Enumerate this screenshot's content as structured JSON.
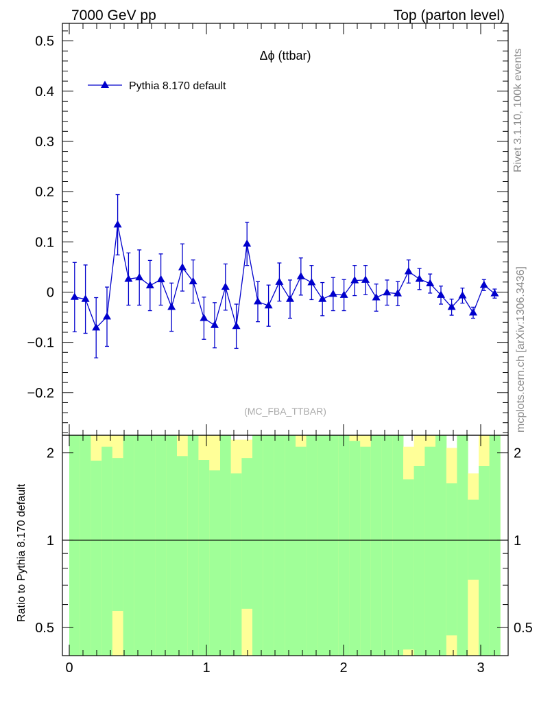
{
  "header": {
    "left": "7000 GeV pp",
    "right": "Top (parton level)"
  },
  "side_labels": {
    "rivet": "Rivet 3.1.10,  100k events",
    "mcplots": "mcplots.cern.ch [arXiv:1306.3436]"
  },
  "chart_data": {
    "type": "line",
    "title": "Δϕ (ttbar)",
    "watermark": "(MC_FBA_TTBAR)",
    "legend": {
      "position": "top-left"
    },
    "main_panel": {
      "ylim": [
        -0.285,
        0.535
      ],
      "yticks": [
        -0.2,
        -0.1,
        0,
        0.1,
        0.2,
        0.3,
        0.4,
        0.5
      ],
      "ytick_labels": [
        "−0.2",
        "−0.1",
        "0",
        "0.1",
        "0.2",
        "0.3",
        "0.4",
        "0.5"
      ],
      "series": [
        {
          "name": "Pythia 8.170 default",
          "color": "#0000cc",
          "marker": "triangle-up",
          "x": [
            0.039,
            0.118,
            0.196,
            0.275,
            0.353,
            0.432,
            0.511,
            0.589,
            0.668,
            0.746,
            0.825,
            0.903,
            0.982,
            1.06,
            1.139,
            1.218,
            1.296,
            1.375,
            1.453,
            1.532,
            1.61,
            1.689,
            1.767,
            1.846,
            1.924,
            2.003,
            2.081,
            2.16,
            2.238,
            2.317,
            2.395,
            2.474,
            2.553,
            2.631,
            2.71,
            2.788,
            2.867,
            2.945,
            3.024,
            3.102
          ],
          "y": [
            -0.01,
            -0.014,
            -0.071,
            -0.049,
            0.134,
            0.026,
            0.029,
            0.013,
            0.025,
            -0.03,
            0.049,
            0.021,
            -0.052,
            -0.066,
            0.01,
            -0.068,
            0.096,
            -0.019,
            -0.027,
            0.02,
            -0.014,
            0.031,
            0.019,
            -0.014,
            -0.004,
            -0.006,
            0.023,
            0.024,
            -0.011,
            -0.001,
            -0.003,
            0.041,
            0.026,
            0.017,
            -0.006,
            -0.03,
            -0.007,
            -0.041,
            0.014,
            -0.003
          ],
          "yerr": [
            0.069,
            0.068,
            0.06,
            0.059,
            0.06,
            0.052,
            0.055,
            0.05,
            0.051,
            0.048,
            0.047,
            0.043,
            0.042,
            0.045,
            0.046,
            0.044,
            0.043,
            0.04,
            0.041,
            0.038,
            0.038,
            0.037,
            0.034,
            0.033,
            0.033,
            0.031,
            0.03,
            0.029,
            0.027,
            0.025,
            0.024,
            0.023,
            0.021,
            0.019,
            0.018,
            0.016,
            0.015,
            0.011,
            0.011,
            0.009
          ]
        }
      ]
    },
    "ratio_panel": {
      "ylabel": "Ratio to Pythia 8.170 default",
      "scale": "log",
      "ylim": [
        0.4,
        2.3
      ],
      "yticks": [
        0.5,
        1,
        2
      ],
      "ytick_labels": [
        "0.5",
        "1",
        "2"
      ],
      "reference": 1,
      "band_colors": {
        "inner": "#a0ff98",
        "outer": "#ffff98"
      },
      "bins": [
        {
          "lo": 0.0,
          "hi": 0.0785,
          "g": [
            0.0,
            10
          ],
          "y": [
            0.0,
            10
          ]
        },
        {
          "lo": 0.0785,
          "hi": 0.157,
          "g": [
            0.0,
            10
          ],
          "y": [
            0.0,
            10
          ]
        },
        {
          "lo": 0.157,
          "hi": 0.236,
          "g": [
            0.0,
            1.88
          ],
          "y": [
            0.0,
            10
          ]
        },
        {
          "lo": 0.236,
          "hi": 0.314,
          "g": [
            0.0,
            2.1
          ],
          "y": [
            0.0,
            10
          ]
        },
        {
          "lo": 0.314,
          "hi": 0.393,
          "g": [
            0.57,
            1.92
          ],
          "y": [
            0.0,
            10
          ]
        },
        {
          "lo": 0.393,
          "hi": 0.471,
          "g": [
            0.0,
            10
          ],
          "y": [
            0.0,
            10
          ]
        },
        {
          "lo": 0.471,
          "hi": 0.55,
          "g": [
            0.0,
            10
          ],
          "y": [
            0.0,
            10
          ]
        },
        {
          "lo": 0.55,
          "hi": 0.628,
          "g": [
            0.0,
            10
          ],
          "y": [
            0.0,
            10
          ]
        },
        {
          "lo": 0.628,
          "hi": 0.707,
          "g": [
            0.0,
            10
          ],
          "y": [
            0.0,
            10
          ]
        },
        {
          "lo": 0.707,
          "hi": 0.785,
          "g": [
            0.0,
            10
          ],
          "y": [
            0.0,
            10
          ]
        },
        {
          "lo": 0.785,
          "hi": 0.864,
          "g": [
            0.0,
            1.95
          ],
          "y": [
            0.0,
            10
          ]
        },
        {
          "lo": 0.864,
          "hi": 0.942,
          "g": [
            0.0,
            10
          ],
          "y": [
            0.0,
            10
          ]
        },
        {
          "lo": 0.942,
          "hi": 1.021,
          "g": [
            0.0,
            1.89
          ],
          "y": [
            0.0,
            10
          ]
        },
        {
          "lo": 1.021,
          "hi": 1.1,
          "g": [
            0.0,
            1.74
          ],
          "y": [
            0.0,
            10
          ]
        },
        {
          "lo": 1.1,
          "hi": 1.178,
          "g": [
            0.0,
            10
          ],
          "y": [
            0.0,
            10
          ]
        },
        {
          "lo": 1.178,
          "hi": 1.257,
          "g": [
            0.0,
            1.7
          ],
          "y": [
            0.0,
            2.22
          ]
        },
        {
          "lo": 1.257,
          "hi": 1.335,
          "g": [
            0.58,
            1.92
          ],
          "y": [
            0.0,
            2.22
          ]
        },
        {
          "lo": 1.335,
          "hi": 1.414,
          "g": [
            0.0,
            10
          ],
          "y": [
            0.0,
            10
          ]
        },
        {
          "lo": 1.414,
          "hi": 1.492,
          "g": [
            0.0,
            10
          ],
          "y": [
            0.0,
            10
          ]
        },
        {
          "lo": 1.492,
          "hi": 1.571,
          "g": [
            0.0,
            10
          ],
          "y": [
            0.0,
            10
          ]
        },
        {
          "lo": 1.571,
          "hi": 1.65,
          "g": [
            0.0,
            10
          ],
          "y": [
            0.0,
            10
          ]
        },
        {
          "lo": 1.65,
          "hi": 1.728,
          "g": [
            0.0,
            2.1
          ],
          "y": [
            0.0,
            10
          ]
        },
        {
          "lo": 1.728,
          "hi": 1.807,
          "g": [
            0.0,
            10
          ],
          "y": [
            0.0,
            10
          ]
        },
        {
          "lo": 1.807,
          "hi": 1.885,
          "g": [
            0.0,
            10
          ],
          "y": [
            0.0,
            10
          ]
        },
        {
          "lo": 1.885,
          "hi": 1.964,
          "g": [
            0.0,
            10
          ],
          "y": [
            0.0,
            10
          ]
        },
        {
          "lo": 1.964,
          "hi": 2.042,
          "g": [
            0.0,
            10
          ],
          "y": [
            0.0,
            10
          ]
        },
        {
          "lo": 2.042,
          "hi": 2.121,
          "g": [
            0.0,
            2.2
          ],
          "y": [
            0.0,
            10
          ]
        },
        {
          "lo": 2.121,
          "hi": 2.199,
          "g": [
            0.0,
            2.1
          ],
          "y": [
            0.0,
            10
          ]
        },
        {
          "lo": 2.199,
          "hi": 2.278,
          "g": [
            0.0,
            10
          ],
          "y": [
            0.0,
            10
          ]
        },
        {
          "lo": 2.278,
          "hi": 2.356,
          "g": [
            0.0,
            10
          ],
          "y": [
            0.0,
            10
          ]
        },
        {
          "lo": 2.356,
          "hi": 2.435,
          "g": [
            0.0,
            10
          ],
          "y": [
            0.0,
            10
          ]
        },
        {
          "lo": 2.435,
          "hi": 2.513,
          "g": [
            0.42,
            1.62
          ],
          "y": [
            0.4,
            2.1
          ]
        },
        {
          "lo": 2.513,
          "hi": 2.592,
          "g": [
            0.0,
            1.8
          ],
          "y": [
            0.0,
            10
          ]
        },
        {
          "lo": 2.592,
          "hi": 2.67,
          "g": [
            0.0,
            2.1
          ],
          "y": [
            0.0,
            10
          ]
        },
        {
          "lo": 2.67,
          "hi": 2.749,
          "g": [
            0.0,
            10
          ],
          "y": [
            0.0,
            10
          ]
        },
        {
          "lo": 2.749,
          "hi": 2.827,
          "g": [
            0.47,
            1.57
          ],
          "y": [
            0.0,
            2.08
          ]
        },
        {
          "lo": 2.827,
          "hi": 2.906,
          "g": [
            0.0,
            10
          ],
          "y": [
            0.0,
            10
          ]
        },
        {
          "lo": 2.906,
          "hi": 2.985,
          "g": [
            0.73,
            1.38
          ],
          "y": [
            0.0,
            1.7
          ]
        },
        {
          "lo": 2.985,
          "hi": 3.063,
          "g": [
            0.0,
            1.8
          ],
          "y": [
            0.0,
            10
          ]
        },
        {
          "lo": 3.063,
          "hi": 3.1416,
          "g": [
            0.0,
            10
          ],
          "y": [
            0.0,
            10
          ]
        }
      ]
    },
    "xlim": [
      -0.05,
      3.2
    ],
    "xticks": [
      0,
      1,
      2,
      3
    ],
    "xtick_labels": [
      "0",
      "1",
      "2",
      "3"
    ]
  }
}
